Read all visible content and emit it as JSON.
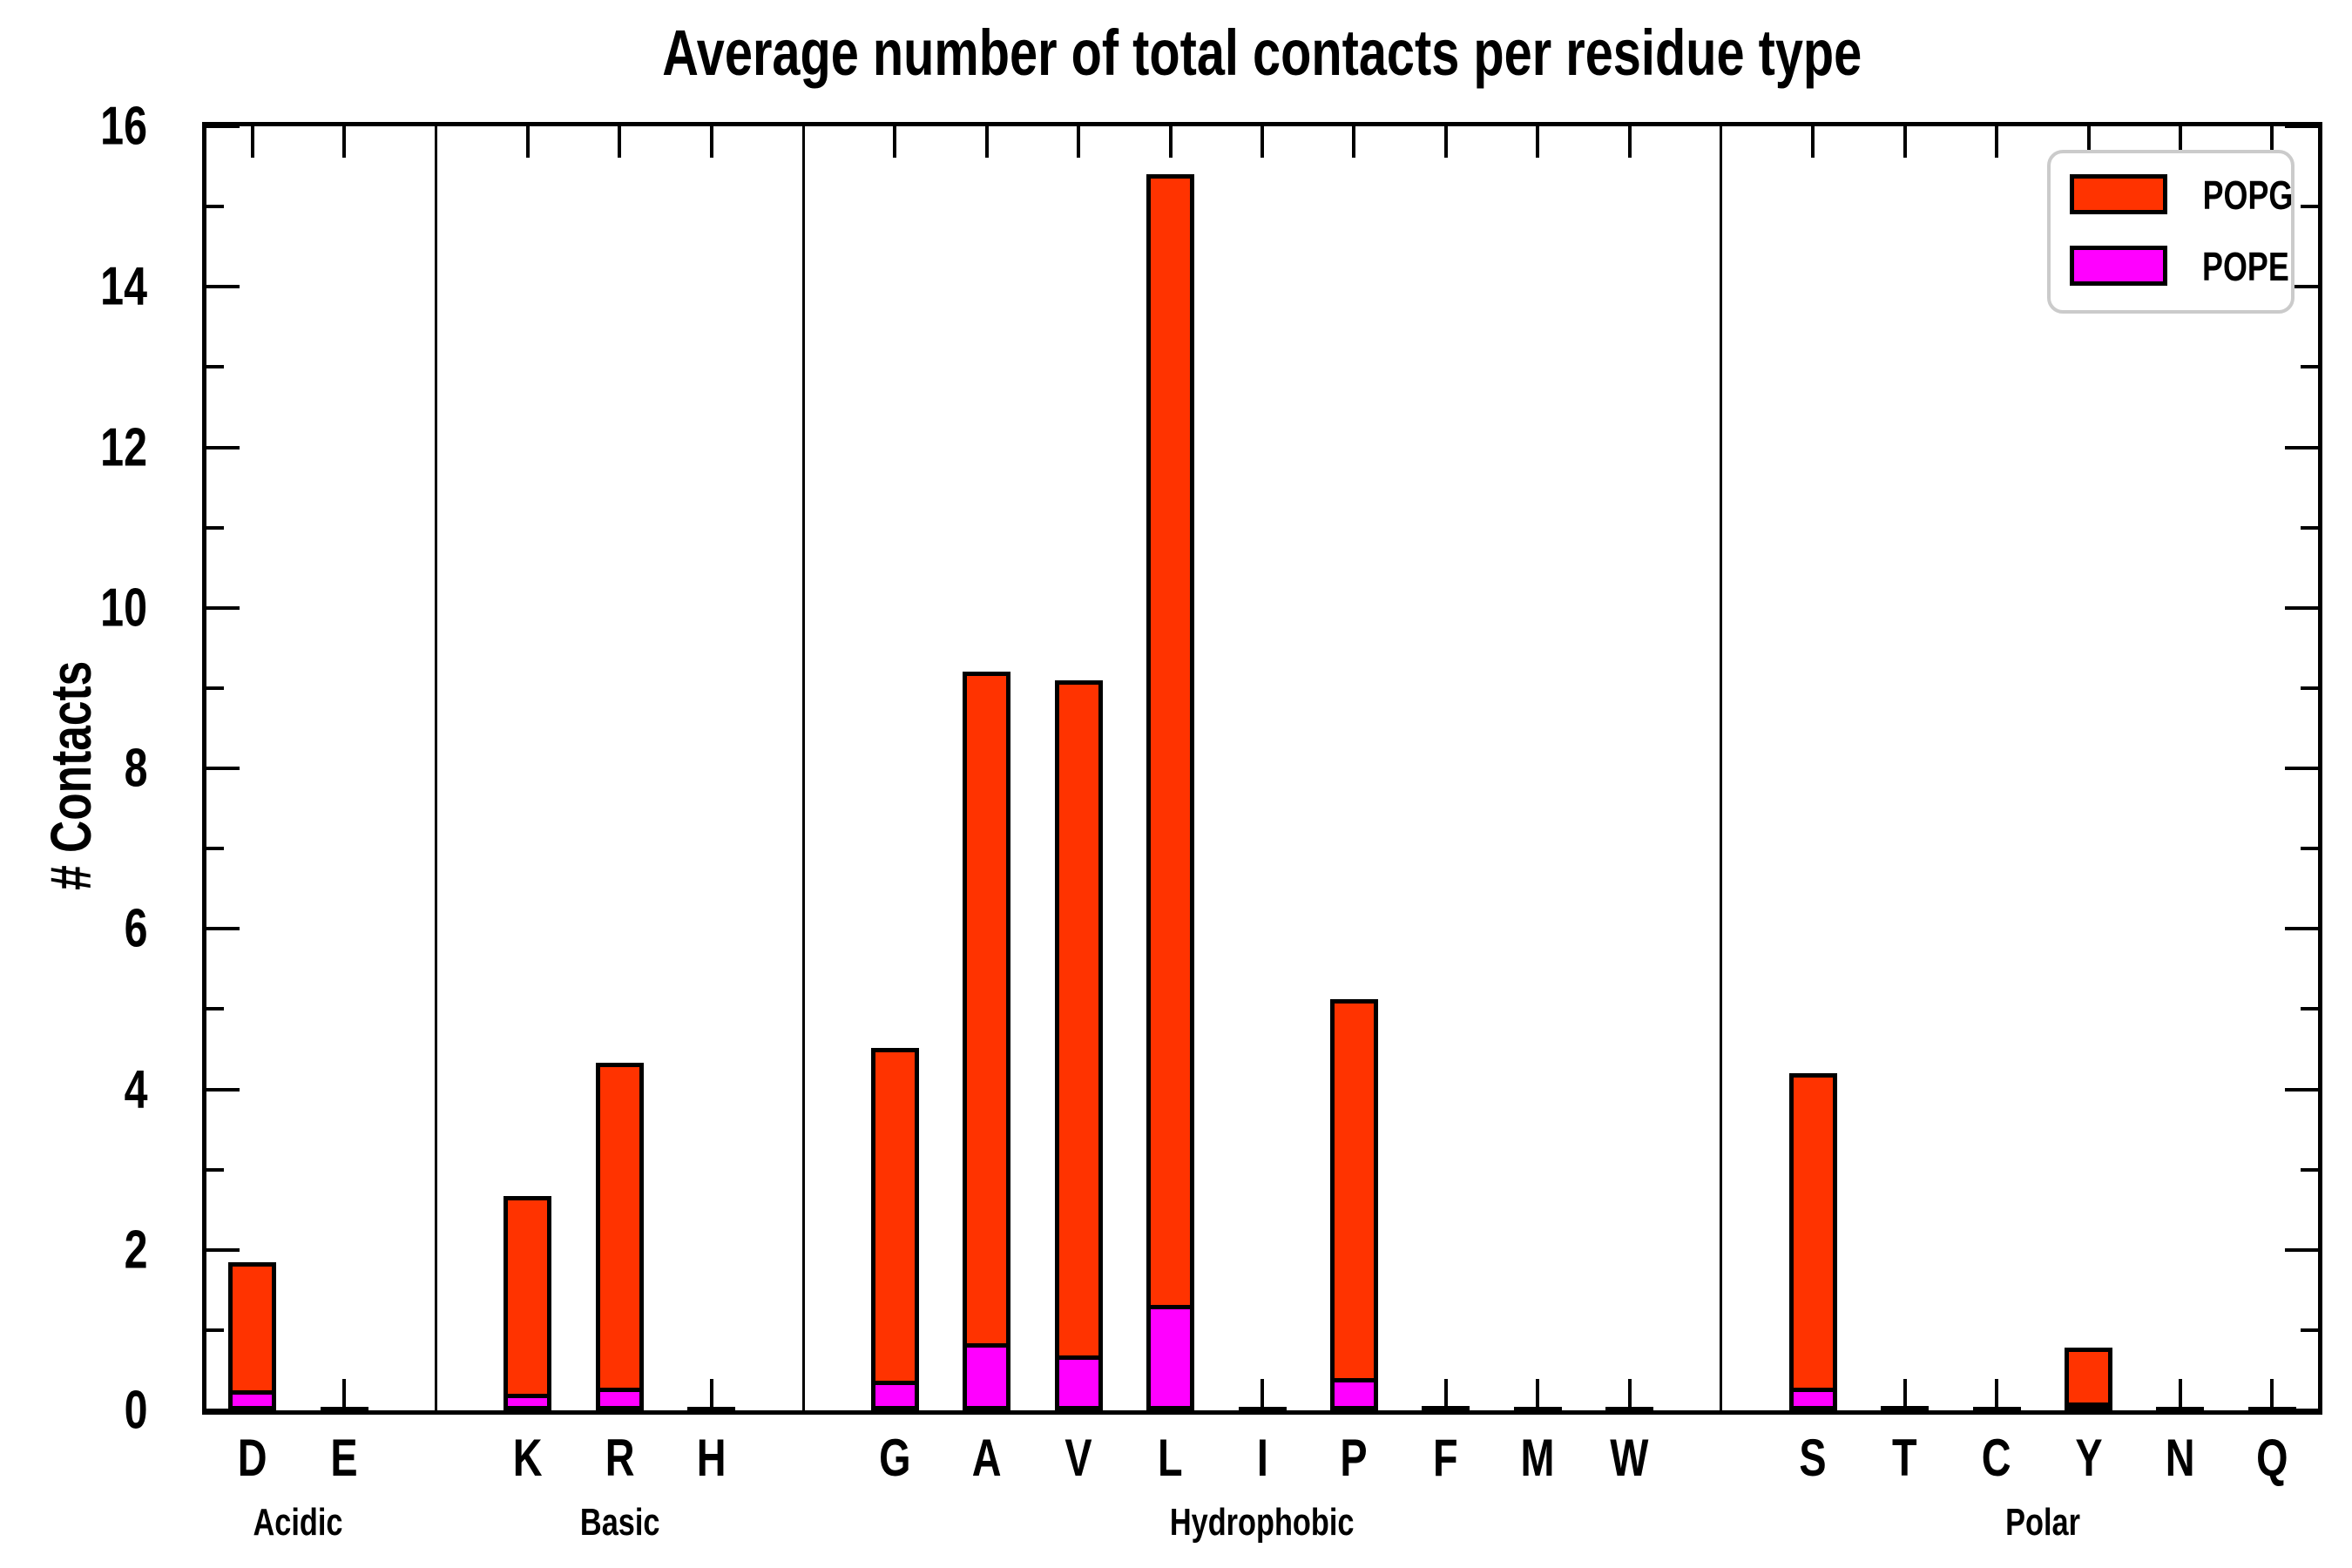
{
  "title": "Average number of total contacts per residue type",
  "y_axis_label": "# Contacts",
  "legend": {
    "items": [
      {
        "label": "POPG",
        "color": "#ff3300"
      },
      {
        "label": "POPE",
        "color": "#ff00ff"
      }
    ]
  },
  "colors": {
    "popg": "#ff3300",
    "pope": "#ff00ff",
    "axis": "#000000",
    "legend_border": "#cbcbcb",
    "background": "#ffffff"
  },
  "chart_data": {
    "type": "bar",
    "stacked": true,
    "title": "Average number of total contacts per residue type",
    "xlabel": "",
    "ylabel": "# Contacts",
    "ylim": [
      0,
      16
    ],
    "y_major_ticks": [
      0,
      2,
      4,
      6,
      8,
      10,
      12,
      14,
      16
    ],
    "y_minor_ticks": [
      1,
      3,
      5,
      7,
      9,
      11,
      13,
      15
    ],
    "grid": false,
    "legend_position": "upper right",
    "categories": [
      "D",
      "E",
      "K",
      "R",
      "H",
      "G",
      "A",
      "V",
      "L",
      "I",
      "P",
      "F",
      "M",
      "W",
      "S",
      "T",
      "C",
      "Y",
      "N",
      "Q"
    ],
    "groups": [
      {
        "label": "Acidic",
        "members": [
          "D",
          "E"
        ]
      },
      {
        "label": "Basic",
        "members": [
          "K",
          "R",
          "H"
        ]
      },
      {
        "label": "Hydrophobic",
        "members": [
          "G",
          "A",
          "V",
          "L",
          "I",
          "P",
          "F",
          "M",
          "W"
        ]
      },
      {
        "label": "Polar",
        "members": [
          "S",
          "T",
          "C",
          "Y",
          "N",
          "Q"
        ]
      }
    ],
    "series": [
      {
        "name": "POPE",
        "stack_order": "bottom",
        "color": "#ff00ff",
        "values": [
          0.2,
          0.0,
          0.15,
          0.23,
          0.0,
          0.32,
          0.78,
          0.63,
          1.26,
          0.0,
          0.35,
          0.0,
          0.0,
          0.0,
          0.23,
          0.0,
          0.0,
          0.04,
          0.0,
          0.0
        ]
      },
      {
        "name": "POPG",
        "stack_order": "top",
        "color": "#ff3300",
        "values": [
          1.65,
          0.04,
          2.52,
          4.1,
          0.04,
          4.2,
          8.42,
          8.47,
          14.14,
          0.04,
          4.77,
          0.05,
          0.04,
          0.04,
          3.97,
          0.05,
          0.04,
          0.74,
          0.04,
          0.04
        ]
      }
    ],
    "stacked_totals": [
      1.85,
      0.04,
      2.67,
      4.33,
      0.04,
      4.52,
      9.2,
      9.1,
      15.4,
      0.04,
      5.12,
      0.05,
      0.04,
      0.04,
      4.2,
      0.05,
      0.04,
      0.78,
      0.04,
      0.04
    ]
  }
}
